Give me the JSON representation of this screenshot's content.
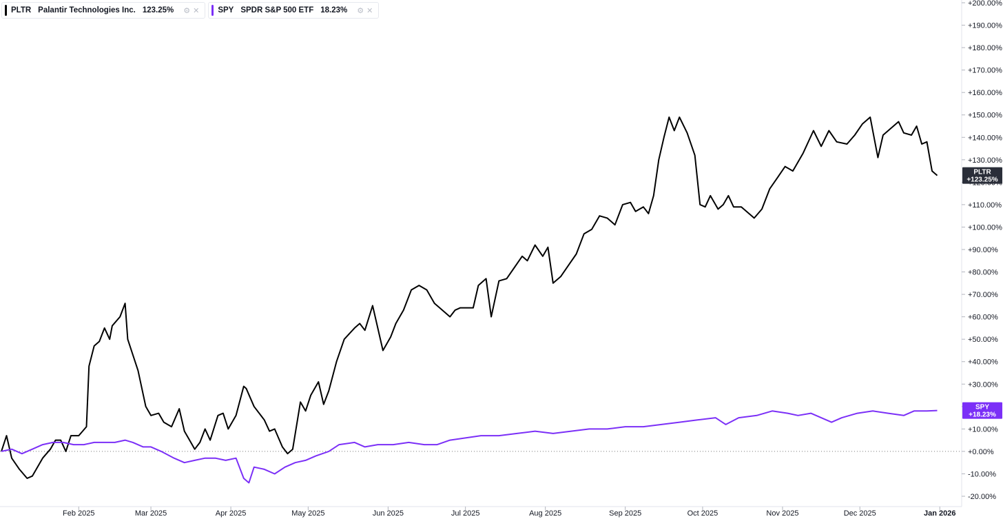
{
  "legend": [
    {
      "symbol": "PLTR",
      "name": "Palantir Technologies Inc.",
      "value": "123.25%",
      "color": "#000000",
      "icons": [
        "settings-icon",
        "close-icon"
      ]
    },
    {
      "symbol": "SPY",
      "name": "SPDR S&P 500 ETF",
      "value": "18.23%",
      "color": "#7b2ff7",
      "icons": [
        "settings-icon",
        "close-icon"
      ]
    }
  ],
  "price_labels": [
    {
      "symbol": "PLTR",
      "value": "+123.25%",
      "bg": "#2a2e39"
    },
    {
      "symbol": "SPY",
      "value": "+18.23%",
      "bg": "#7b2ff7"
    }
  ],
  "chart_data": {
    "type": "line",
    "y_unit": "%",
    "ylim": [
      -20,
      200
    ],
    "y_ticks": [
      "+200.00%",
      "+190.00%",
      "+180.00%",
      "+170.00%",
      "+160.00%",
      "+150.00%",
      "+140.00%",
      "+130.00%",
      "+120.00%",
      "+110.00%",
      "+100.00%",
      "+90.00%",
      "+80.00%",
      "+70.00%",
      "+60.00%",
      "+50.00%",
      "+40.00%",
      "+30.00%",
      "+20.00%",
      "+10.00%",
      "+0.00%",
      "-10.00%",
      "-20.00%"
    ],
    "x_ticks": [
      "Feb 2025",
      "Mar 2025",
      "Apr 2025",
      "May 2025",
      "Jun 2025",
      "Jul 2025",
      "Aug 2025",
      "Sep 2025",
      "Oct 2025",
      "Nov 2025",
      "Dec 2025",
      "Jan 2026"
    ],
    "x_range": [
      "2025-01-02",
      "2026-01-02"
    ],
    "zero_line": true,
    "grid": false,
    "series": [
      {
        "name": "PLTR",
        "color": "#000000",
        "points": [
          [
            "2025-01-02",
            0
          ],
          [
            "2025-01-04",
            7
          ],
          [
            "2025-01-06",
            -3
          ],
          [
            "2025-01-09",
            -8
          ],
          [
            "2025-01-12",
            -12
          ],
          [
            "2025-01-14",
            -11
          ],
          [
            "2025-01-18",
            -3
          ],
          [
            "2025-01-21",
            1
          ],
          [
            "2025-01-23",
            5
          ],
          [
            "2025-01-25",
            5
          ],
          [
            "2025-01-27",
            0
          ],
          [
            "2025-01-29",
            7
          ],
          [
            "2025-02-01",
            7
          ],
          [
            "2025-02-04",
            11
          ],
          [
            "2025-02-05",
            38
          ],
          [
            "2025-02-07",
            47
          ],
          [
            "2025-02-09",
            49
          ],
          [
            "2025-02-11",
            55
          ],
          [
            "2025-02-13",
            50
          ],
          [
            "2025-02-14",
            56
          ],
          [
            "2025-02-17",
            60
          ],
          [
            "2025-02-19",
            66
          ],
          [
            "2025-02-20",
            50
          ],
          [
            "2025-02-24",
            36
          ],
          [
            "2025-02-27",
            20
          ],
          [
            "2025-03-01",
            16
          ],
          [
            "2025-03-04",
            17
          ],
          [
            "2025-03-06",
            13
          ],
          [
            "2025-03-09",
            11
          ],
          [
            "2025-03-12",
            19
          ],
          [
            "2025-03-14",
            9
          ],
          [
            "2025-03-16",
            5
          ],
          [
            "2025-03-18",
            1
          ],
          [
            "2025-03-20",
            4
          ],
          [
            "2025-03-22",
            10
          ],
          [
            "2025-03-24",
            5
          ],
          [
            "2025-03-27",
            16
          ],
          [
            "2025-03-29",
            17
          ],
          [
            "2025-03-31",
            10
          ],
          [
            "2025-04-03",
            16
          ],
          [
            "2025-04-06",
            29
          ],
          [
            "2025-04-07",
            28
          ],
          [
            "2025-04-10",
            20
          ],
          [
            "2025-04-14",
            14
          ],
          [
            "2025-04-16",
            9
          ],
          [
            "2025-04-18",
            10
          ],
          [
            "2025-04-21",
            2
          ],
          [
            "2025-04-23",
            -1
          ],
          [
            "2025-04-25",
            1
          ],
          [
            "2025-04-28",
            22
          ],
          [
            "2025-04-30",
            18
          ],
          [
            "2025-05-02",
            25
          ],
          [
            "2025-05-05",
            31
          ],
          [
            "2025-05-07",
            21
          ],
          [
            "2025-05-09",
            27
          ],
          [
            "2025-05-12",
            40
          ],
          [
            "2025-05-15",
            50
          ],
          [
            "2025-05-19",
            55
          ],
          [
            "2025-05-21",
            57
          ],
          [
            "2025-05-23",
            54
          ],
          [
            "2025-05-26",
            65
          ],
          [
            "2025-05-30",
            45
          ],
          [
            "2025-06-02",
            51
          ],
          [
            "2025-06-04",
            57
          ],
          [
            "2025-06-07",
            63
          ],
          [
            "2025-06-10",
            72
          ],
          [
            "2025-06-13",
            74
          ],
          [
            "2025-06-16",
            72
          ],
          [
            "2025-06-19",
            66
          ],
          [
            "2025-06-22",
            63
          ],
          [
            "2025-06-25",
            60
          ],
          [
            "2025-06-27",
            63
          ],
          [
            "2025-06-29",
            64
          ],
          [
            "2025-07-02",
            64
          ],
          [
            "2025-07-04",
            64
          ],
          [
            "2025-07-06",
            74
          ],
          [
            "2025-07-09",
            77
          ],
          [
            "2025-07-11",
            60
          ],
          [
            "2025-07-14",
            76
          ],
          [
            "2025-07-17",
            77
          ],
          [
            "2025-07-20",
            82
          ],
          [
            "2025-07-23",
            87
          ],
          [
            "2025-07-25",
            85
          ],
          [
            "2025-07-28",
            92
          ],
          [
            "2025-07-31",
            87
          ],
          [
            "2025-08-02",
            91
          ],
          [
            "2025-08-04",
            75
          ],
          [
            "2025-08-07",
            78
          ],
          [
            "2025-08-10",
            83
          ],
          [
            "2025-08-13",
            88
          ],
          [
            "2025-08-16",
            97
          ],
          [
            "2025-08-19",
            99
          ],
          [
            "2025-08-22",
            105
          ],
          [
            "2025-08-25",
            104
          ],
          [
            "2025-08-28",
            101
          ],
          [
            "2025-08-31",
            110
          ],
          [
            "2025-09-03",
            111
          ],
          [
            "2025-09-05",
            107
          ],
          [
            "2025-09-08",
            109
          ],
          [
            "2025-09-10",
            106
          ],
          [
            "2025-09-12",
            114
          ],
          [
            "2025-09-14",
            130
          ],
          [
            "2025-09-16",
            140
          ],
          [
            "2025-09-18",
            149
          ],
          [
            "2025-09-20",
            143
          ],
          [
            "2025-09-22",
            149
          ],
          [
            "2025-09-25",
            142
          ],
          [
            "2025-09-28",
            132
          ],
          [
            "2025-09-30",
            110
          ],
          [
            "2025-10-02",
            109
          ],
          [
            "2025-10-04",
            114
          ],
          [
            "2025-10-07",
            108
          ],
          [
            "2025-10-09",
            110
          ],
          [
            "2025-10-11",
            114
          ],
          [
            "2025-10-13",
            109
          ],
          [
            "2025-10-16",
            109
          ],
          [
            "2025-10-19",
            106
          ],
          [
            "2025-10-21",
            104
          ],
          [
            "2025-10-24",
            108
          ],
          [
            "2025-10-27",
            117
          ],
          [
            "2025-10-30",
            122
          ],
          [
            "2025-11-02",
            127
          ],
          [
            "2025-11-05",
            125
          ],
          [
            "2025-11-09",
            133
          ],
          [
            "2025-11-13",
            143
          ],
          [
            "2025-11-16",
            136
          ],
          [
            "2025-11-19",
            143
          ],
          [
            "2025-11-22",
            138
          ],
          [
            "2025-11-26",
            137
          ],
          [
            "2025-11-29",
            141
          ],
          [
            "2025-12-02",
            146
          ],
          [
            "2025-12-05",
            149
          ],
          [
            "2025-12-08",
            131
          ],
          [
            "2025-12-10",
            141
          ],
          [
            "2025-12-14",
            145
          ],
          [
            "2025-12-16",
            147
          ],
          [
            "2025-12-18",
            142
          ],
          [
            "2025-12-21",
            141
          ],
          [
            "2025-12-23",
            145
          ],
          [
            "2025-12-25",
            137
          ],
          [
            "2025-12-27",
            138
          ],
          [
            "2025-12-29",
            125
          ],
          [
            "2025-12-31",
            123
          ]
        ]
      },
      {
        "name": "SPY",
        "color": "#7b2ff7",
        "points": [
          [
            "2025-01-02",
            0
          ],
          [
            "2025-01-06",
            1
          ],
          [
            "2025-01-10",
            -1
          ],
          [
            "2025-01-14",
            1
          ],
          [
            "2025-01-18",
            3
          ],
          [
            "2025-01-22",
            4
          ],
          [
            "2025-01-26",
            4
          ],
          [
            "2025-01-30",
            3
          ],
          [
            "2025-02-03",
            3
          ],
          [
            "2025-02-07",
            4
          ],
          [
            "2025-02-11",
            4
          ],
          [
            "2025-02-15",
            4
          ],
          [
            "2025-02-19",
            5
          ],
          [
            "2025-02-22",
            4
          ],
          [
            "2025-02-26",
            2
          ],
          [
            "2025-03-01",
            2
          ],
          [
            "2025-03-05",
            0
          ],
          [
            "2025-03-10",
            -3
          ],
          [
            "2025-03-14",
            -5
          ],
          [
            "2025-03-18",
            -4
          ],
          [
            "2025-03-22",
            -3
          ],
          [
            "2025-03-26",
            -3
          ],
          [
            "2025-03-30",
            -4
          ],
          [
            "2025-04-03",
            -3
          ],
          [
            "2025-04-06",
            -12
          ],
          [
            "2025-04-08",
            -14
          ],
          [
            "2025-04-10",
            -7
          ],
          [
            "2025-04-14",
            -8
          ],
          [
            "2025-04-18",
            -10
          ],
          [
            "2025-04-22",
            -7
          ],
          [
            "2025-04-26",
            -5
          ],
          [
            "2025-04-30",
            -4
          ],
          [
            "2025-05-04",
            -2
          ],
          [
            "2025-05-09",
            0
          ],
          [
            "2025-05-13",
            3
          ],
          [
            "2025-05-19",
            4
          ],
          [
            "2025-05-23",
            2
          ],
          [
            "2025-05-28",
            3
          ],
          [
            "2025-06-03",
            3
          ],
          [
            "2025-06-09",
            4
          ],
          [
            "2025-06-15",
            3
          ],
          [
            "2025-06-20",
            3
          ],
          [
            "2025-06-25",
            5
          ],
          [
            "2025-07-01",
            6
          ],
          [
            "2025-07-07",
            7
          ],
          [
            "2025-07-14",
            7
          ],
          [
            "2025-07-21",
            8
          ],
          [
            "2025-07-28",
            9
          ],
          [
            "2025-08-04",
            8
          ],
          [
            "2025-08-11",
            9
          ],
          [
            "2025-08-18",
            10
          ],
          [
            "2025-08-25",
            10
          ],
          [
            "2025-09-01",
            11
          ],
          [
            "2025-09-08",
            11
          ],
          [
            "2025-09-15",
            12
          ],
          [
            "2025-09-22",
            13
          ],
          [
            "2025-09-29",
            14
          ],
          [
            "2025-10-06",
            15
          ],
          [
            "2025-10-10",
            12
          ],
          [
            "2025-10-15",
            15
          ],
          [
            "2025-10-22",
            16
          ],
          [
            "2025-10-28",
            18
          ],
          [
            "2025-11-03",
            17
          ],
          [
            "2025-11-07",
            16
          ],
          [
            "2025-11-12",
            17
          ],
          [
            "2025-11-16",
            15
          ],
          [
            "2025-11-20",
            13
          ],
          [
            "2025-11-24",
            15
          ],
          [
            "2025-11-30",
            17
          ],
          [
            "2025-12-06",
            18
          ],
          [
            "2025-12-12",
            17
          ],
          [
            "2025-12-18",
            16
          ],
          [
            "2025-12-22",
            18
          ],
          [
            "2025-12-27",
            18
          ],
          [
            "2025-12-31",
            18.23
          ]
        ]
      }
    ]
  }
}
